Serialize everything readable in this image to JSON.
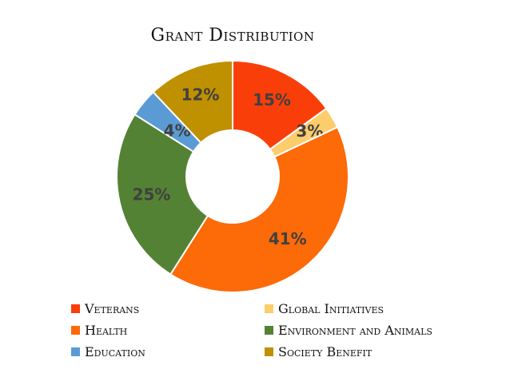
{
  "chart_data": {
    "type": "pie",
    "variant": "donut",
    "title": "Grant Distribution",
    "categories": [
      "Veterans",
      "Global Initiatives",
      "Health",
      "Environment and Animals",
      "Education",
      "Society Benefit"
    ],
    "values": [
      15,
      3,
      41,
      25,
      4,
      12
    ],
    "labels": [
      "15%",
      "3%",
      "41%",
      "25%",
      "4%",
      "12%"
    ],
    "colors": [
      "#fa3e0a",
      "#fdcc6c",
      "#fd6a08",
      "#548235",
      "#5b9bd5",
      "#bf9000"
    ],
    "legend_position": "bottom"
  }
}
